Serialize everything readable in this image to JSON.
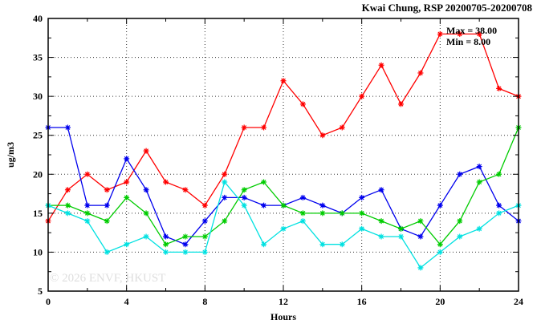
{
  "window": {
    "title": "Kwai Chung, RSP 20200705-20200708"
  },
  "annotation": {
    "max_label": "Max = 38.00",
    "min_label": "Min = 8.00"
  },
  "watermark": "© 2026 ENVF, HKUST",
  "chart_data": {
    "type": "line",
    "title": "Kwai Chung, RSP 20200705-20200708",
    "xlabel": "Hours",
    "ylabel": "ug/m3",
    "xlim": [
      0,
      24
    ],
    "ylim": [
      5,
      40
    ],
    "x_ticks_major": [
      0,
      4,
      8,
      12,
      16,
      20,
      24
    ],
    "x_minor_step": 2,
    "y_ticks_major": [
      5,
      10,
      15,
      20,
      25,
      30,
      35,
      40
    ],
    "y_minor_step": 2.5,
    "grid": {
      "style": "dotted",
      "horizontal": [
        10,
        15,
        20,
        25,
        30,
        35
      ],
      "vertical": [
        4,
        8,
        12,
        16,
        20
      ]
    },
    "legend": "none",
    "stats": {
      "max": 38.0,
      "min": 8.0
    },
    "x": [
      0,
      1,
      2,
      3,
      4,
      5,
      6,
      7,
      8,
      9,
      10,
      11,
      12,
      13,
      14,
      15,
      16,
      17,
      18,
      19,
      20,
      21,
      22,
      23,
      24
    ],
    "series": [
      {
        "name": "red",
        "color": "#ff0000",
        "values": [
          14,
          18,
          20,
          18,
          19,
          23,
          19,
          18,
          16,
          20,
          26,
          26,
          32,
          29,
          25,
          26,
          30,
          34,
          29,
          33,
          38,
          38,
          38,
          31,
          30
        ]
      },
      {
        "name": "blue",
        "color": "#0000ee",
        "values": [
          26,
          26,
          16,
          16,
          22,
          18,
          12,
          11,
          14,
          17,
          17,
          16,
          16,
          17,
          16,
          15,
          17,
          18,
          13,
          12,
          16,
          20,
          21,
          16,
          14
        ]
      },
      {
        "name": "green",
        "color": "#00cc00",
        "values": [
          16,
          16,
          15,
          14,
          17,
          15,
          11,
          12,
          12,
          14,
          18,
          19,
          16,
          15,
          15,
          15,
          15,
          14,
          13,
          14,
          11,
          14,
          19,
          20,
          26
        ]
      },
      {
        "name": "cyan",
        "color": "#00e1e1",
        "values": [
          16,
          15,
          14,
          10,
          11,
          12,
          10,
          10,
          10,
          19,
          16,
          11,
          13,
          14,
          11,
          11,
          13,
          12,
          12,
          8,
          10,
          12,
          13,
          15,
          16
        ]
      }
    ]
  }
}
